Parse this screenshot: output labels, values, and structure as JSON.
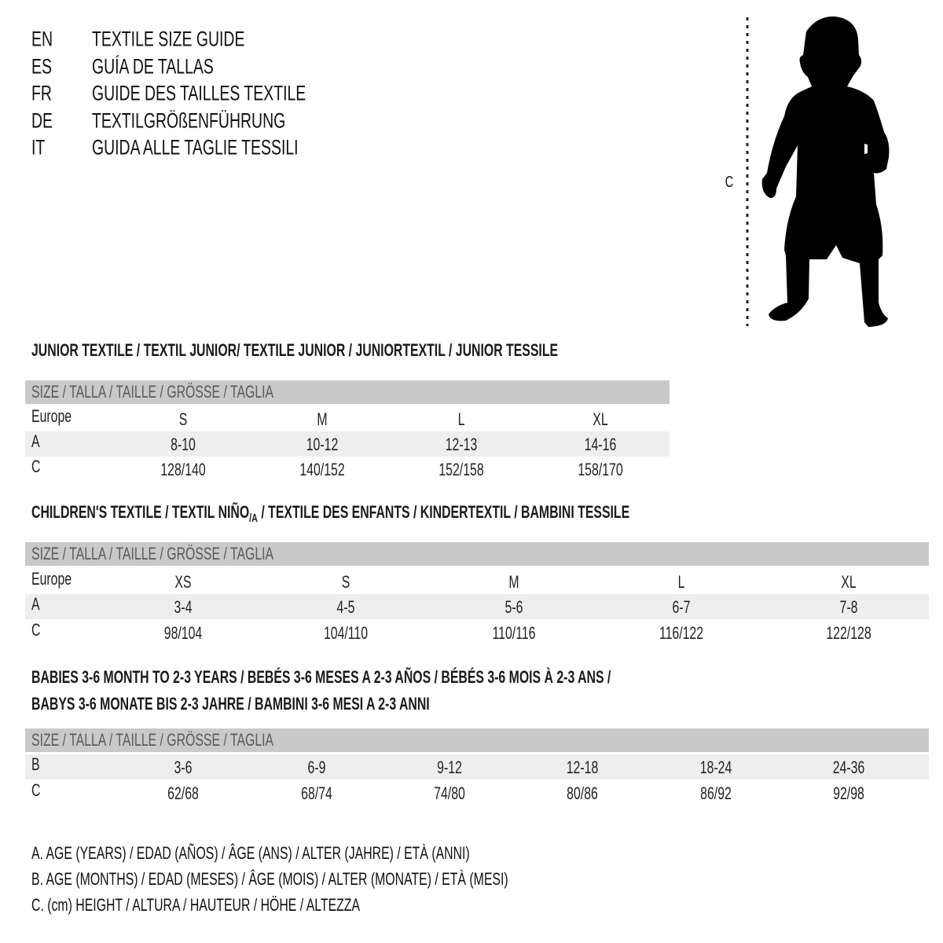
{
  "title_lines": [
    {
      "lang": "EN",
      "text": "TEXTILE SIZE GUIDE"
    },
    {
      "lang": "ES",
      "text": "GUÍA DE TALLAS"
    },
    {
      "lang": "FR",
      "text": "GUIDE DES TAILLES TEXTILE"
    },
    {
      "lang": "DE",
      "text": "TEXTILGRÖßENFÜHRUNG"
    },
    {
      "lang": "IT",
      "text": "GUIDA ALLE TAGLIE TESSILI"
    }
  ],
  "figure": {
    "icon": "child-silhouette-icon",
    "measure_label": "C"
  },
  "size_header": "SIZE / TALLA / TAILLE / GRÖSSE / TAGLIA",
  "junior": {
    "heading": "JUNIOR TEXTILE / TEXTIL JUNIOR/ TEXTILE JUNIOR / JUNIORTEXTIL / JUNIOR TESSILE",
    "rows": [
      {
        "label": "Europe",
        "values": [
          "S",
          "M",
          "L",
          "XL"
        ]
      },
      {
        "label": "A",
        "values": [
          "8-10",
          "10-12",
          "12-13",
          "14-16"
        ]
      },
      {
        "label": "C",
        "values": [
          "128/140",
          "140/152",
          "152/158",
          "158/170"
        ]
      }
    ]
  },
  "children": {
    "heading_pre": "CHILDREN'S TEXTILE / TEXTIL NIÑO",
    "heading_sub": "/A",
    "heading_post": " / TEXTILE DES ENFANTS / KINDERTEXTIL / BAMBINI TESSILE",
    "rows": [
      {
        "label": "Europe",
        "values": [
          "XS",
          "S",
          "M",
          "L",
          "XL"
        ]
      },
      {
        "label": "A",
        "values": [
          "3-4",
          "4-5",
          "5-6",
          "6-7",
          "7-8"
        ]
      },
      {
        "label": "C",
        "values": [
          "98/104",
          "104/110",
          "110/116",
          "116/122",
          "122/128"
        ]
      }
    ]
  },
  "babies": {
    "heading_1": "BABIES 3-6 MONTH TO 2-3 YEARS / BEBÉS 3-6 MESES A 2-3 AÑOS / BÉBÉS 3-6 MOIS À 2-3 ANS /",
    "heading_2": "BABYS 3-6 MONATE BIS 2-3 JAHRE / BAMBINI 3-6 MESI A 2-3 ANNI",
    "rows": [
      {
        "label": "B",
        "values": [
          "3-6",
          "6-9",
          "9-12",
          "12-18",
          "18-24",
          "24-36"
        ]
      },
      {
        "label": "C",
        "values": [
          "62/68",
          "68/74",
          "74/80",
          "80/86",
          "86/92",
          "92/98"
        ]
      }
    ]
  },
  "footnotes": [
    "A. AGE (YEARS) / EDAD (AÑOS) / ÂGE (ANS) / ALTER (JAHRE) / ETÀ (ANNI)",
    "B. AGE (MONTHS) / EDAD (MESES) / ÂGE (MOIS) / ALTER (MONATE) / ETÀ (MESI)",
    "C. (cm) HEIGHT / ALTURA / HAUTEUR / HÖHE / ALTEZZA"
  ]
}
